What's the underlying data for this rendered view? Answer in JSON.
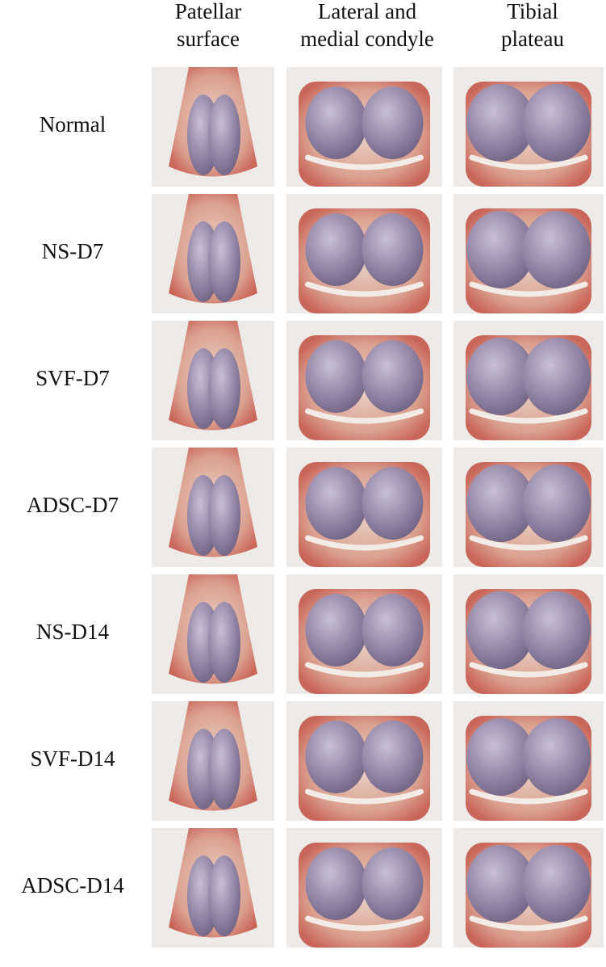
{
  "columns": [
    [
      "Patellar",
      "surface"
    ],
    [
      "Lateral and",
      "medial condyle"
    ],
    [
      "Tibial",
      "plateau"
    ]
  ],
  "rows": [
    "Normal",
    "NS-D7",
    "SVF-D7",
    "ADSC-D7",
    "NS-D14",
    "SVF-D14",
    "ADSC-D14"
  ]
}
